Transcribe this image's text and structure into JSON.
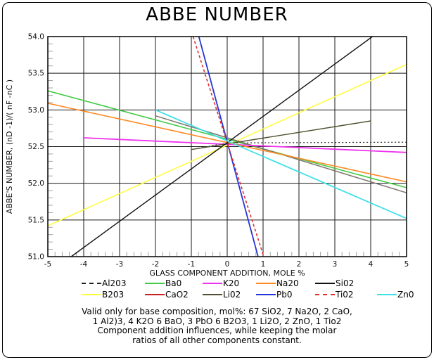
{
  "chart_data": {
    "type": "line",
    "title": "ABBE NUMBER",
    "xlabel": "GLASS COMPONENT ADDITION, MOLE %",
    "ylabel": "ABBE'S NUMBER, (nD -1)/( nF -nC )",
    "xlim": [
      -5,
      5
    ],
    "ylim": [
      51.0,
      54.0
    ],
    "grid": true,
    "x_tick_values": [
      -5,
      -4,
      -3,
      -2,
      -1,
      0,
      1,
      2,
      3,
      4,
      5
    ],
    "x_tick_labels": [
      "-5",
      "-4",
      "-3",
      "-2",
      "-1",
      "0",
      "1",
      "2",
      "3",
      "4",
      "5"
    ],
    "y_tick_values": [
      54.0,
      53.5,
      53.0,
      52.5,
      52.0,
      51.5,
      51.0
    ],
    "y_tick_labels": [
      "54.0",
      "53.5",
      "53.0",
      "52.5",
      "52.0",
      "51.5",
      "51.0"
    ],
    "x_minor_step": 0.2,
    "y_minor_step": 0.1,
    "common_point": [
      0,
      52.55
    ],
    "series": [
      {
        "name": "Al203",
        "color": "#222222",
        "line_color": "#222222",
        "dash": "2,3",
        "legend_dash": "4,3",
        "width": 1.2,
        "points": [
          [
            -1,
            52.46
          ],
          [
            0,
            52.55
          ],
          [
            5,
            52.56
          ]
        ]
      },
      {
        "name": "B203",
        "color": "#ffff42",
        "line_color": "#ffff42",
        "width": 1.6,
        "points": [
          [
            -5,
            51.42
          ],
          [
            5,
            53.62
          ]
        ]
      },
      {
        "name": "Ba0",
        "color": "#44cc44",
        "line_color": "#44cc44",
        "width": 1.6,
        "points": [
          [
            -5,
            53.26
          ],
          [
            5,
            51.94
          ]
        ]
      },
      {
        "name": "CaO2",
        "color": "#cc2222",
        "line_color": "#7d746c",
        "width": 1.5,
        "points": [
          [
            -2,
            52.92
          ],
          [
            5,
            51.87
          ]
        ]
      },
      {
        "name": "K20",
        "color": "#ee33ee",
        "line_color": "#ee33ee",
        "width": 1.8,
        "points": [
          [
            -4,
            52.62
          ],
          [
            5,
            52.42
          ]
        ]
      },
      {
        "name": "Li02",
        "color": "#4f4f2f",
        "line_color": "#4f4f2f",
        "width": 1.4,
        "points": [
          [
            -1,
            52.46
          ],
          [
            4,
            52.85
          ]
        ]
      },
      {
        "name": "Na20",
        "color": "#ff8820",
        "line_color": "#ff8820",
        "width": 1.6,
        "points": [
          [
            -5,
            53.09
          ],
          [
            5,
            52.02
          ]
        ]
      },
      {
        "name": "Pb0",
        "color": "#2736d6",
        "line_color": "#2736d6",
        "width": 1.8,
        "points": [
          [
            -0.79,
            54.0
          ],
          [
            0.86,
            51.0
          ]
        ]
      },
      {
        "name": "Si02",
        "color": "#111111",
        "line_color": "#111111",
        "width": 1.4,
        "points": [
          [
            -4.35,
            51.0
          ],
          [
            4.05,
            54.0
          ]
        ]
      },
      {
        "name": "Ti02",
        "color": "#e03030",
        "line_color": "#e03030",
        "dash": "4,3",
        "legend_dash": "4,3",
        "width": 1.6,
        "points": [
          [
            -0.95,
            54.0
          ],
          [
            1.02,
            51.0
          ]
        ]
      },
      {
        "name": "Zn0",
        "color": "#3fe0e8",
        "line_color": "#3fe0e8",
        "width": 1.8,
        "points": [
          [
            -2,
            53.0
          ],
          [
            5,
            51.52
          ]
        ]
      }
    ],
    "legend_grid": [
      [
        "Al203",
        "Ba0",
        "K20",
        "Na20",
        "Si02",
        ""
      ],
      [
        "B203",
        "CaO2",
        "Li02",
        "Pb0",
        "Ti02",
        "Zn0"
      ]
    ]
  },
  "caption": {
    "lines": [
      "Valid only for base composition, mol%: 67 SiO2, 7 Na2O, 2 CaO,",
      "1 Al2)3, 4 K2O 6 BaO, 3 PbO 6 B2O3, 1 Li2O, 2 ZnO, 1 Tio2",
      "Component addition influences, while keeping the molar",
      "ratios of all other components constant."
    ]
  }
}
